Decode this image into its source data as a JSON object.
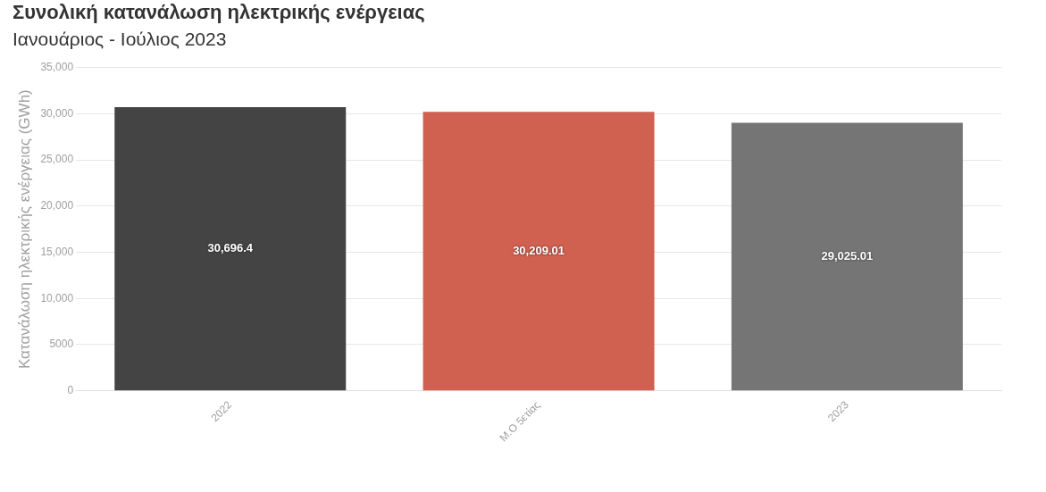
{
  "chart_data": {
    "type": "bar",
    "title": "Συνολική κατανάλωση ηλεκτρικής ενέργειας",
    "subtitle": "Ιανουάριος - Ιούλιος 2023",
    "ylabel": "Κατανάλωση ηλεκτρικής ενέργειας (GWh)",
    "categories": [
      "2022",
      "Μ.Ο 5ετίας",
      "2023"
    ],
    "values": [
      30696.4,
      30209.01,
      29025.01
    ],
    "colors": [
      "#444444",
      "#d06050",
      "#757575"
    ],
    "value_labels": [
      "30,696.4",
      "30,209.01",
      "29,025.01"
    ],
    "ylim": [
      0,
      35000
    ],
    "yticks": [
      0,
      5000,
      {
        "value": 10000,
        "label": "10,000"
      },
      {
        "value": 15000,
        "label": "15,000"
      },
      {
        "value": 20000,
        "label": "20,000"
      },
      {
        "value": 25000,
        "label": "25,000"
      },
      {
        "value": 30000,
        "label": "30,000"
      },
      {
        "value": 35000,
        "label": "35,000"
      }
    ],
    "grid": "y",
    "legend": false
  }
}
